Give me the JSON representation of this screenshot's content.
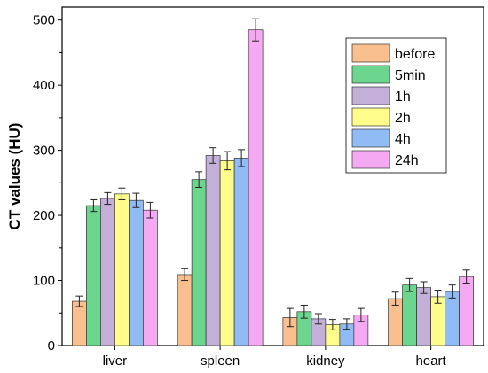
{
  "chart_data": {
    "type": "bar",
    "title": "",
    "xlabel": "",
    "ylabel": "CT values (HU)",
    "ylim": [
      0,
      520
    ],
    "yticks": [
      0,
      100,
      200,
      300,
      400,
      500
    ],
    "categories": [
      "liver",
      "spleen",
      "kidney",
      "heart"
    ],
    "grid": false,
    "legend_position": "top-right",
    "error_bars": true,
    "series": [
      {
        "name": "before",
        "color": "#F9BF8F",
        "values": [
          68,
          109,
          43,
          72
        ],
        "errors": [
          8,
          9,
          14,
          10
        ]
      },
      {
        "name": "5min",
        "color": "#6CD58E",
        "values": [
          215,
          255,
          52,
          93
        ],
        "errors": [
          9,
          12,
          10,
          10
        ]
      },
      {
        "name": "1h",
        "color": "#C3AFD8",
        "values": [
          226,
          292,
          41,
          89
        ],
        "errors": [
          9,
          12,
          8,
          9
        ]
      },
      {
        "name": "2h",
        "color": "#FEFD8C",
        "values": [
          233,
          284,
          32,
          75
        ],
        "errors": [
          9,
          14,
          8,
          10
        ]
      },
      {
        "name": "4h",
        "color": "#90BBF5",
        "values": [
          223,
          288,
          33,
          83
        ],
        "errors": [
          11,
          13,
          8,
          10
        ]
      },
      {
        "name": "24h",
        "color": "#F6A9F3",
        "values": [
          208,
          485,
          47,
          106
        ],
        "errors": [
          12,
          17,
          10,
          10
        ]
      }
    ]
  }
}
